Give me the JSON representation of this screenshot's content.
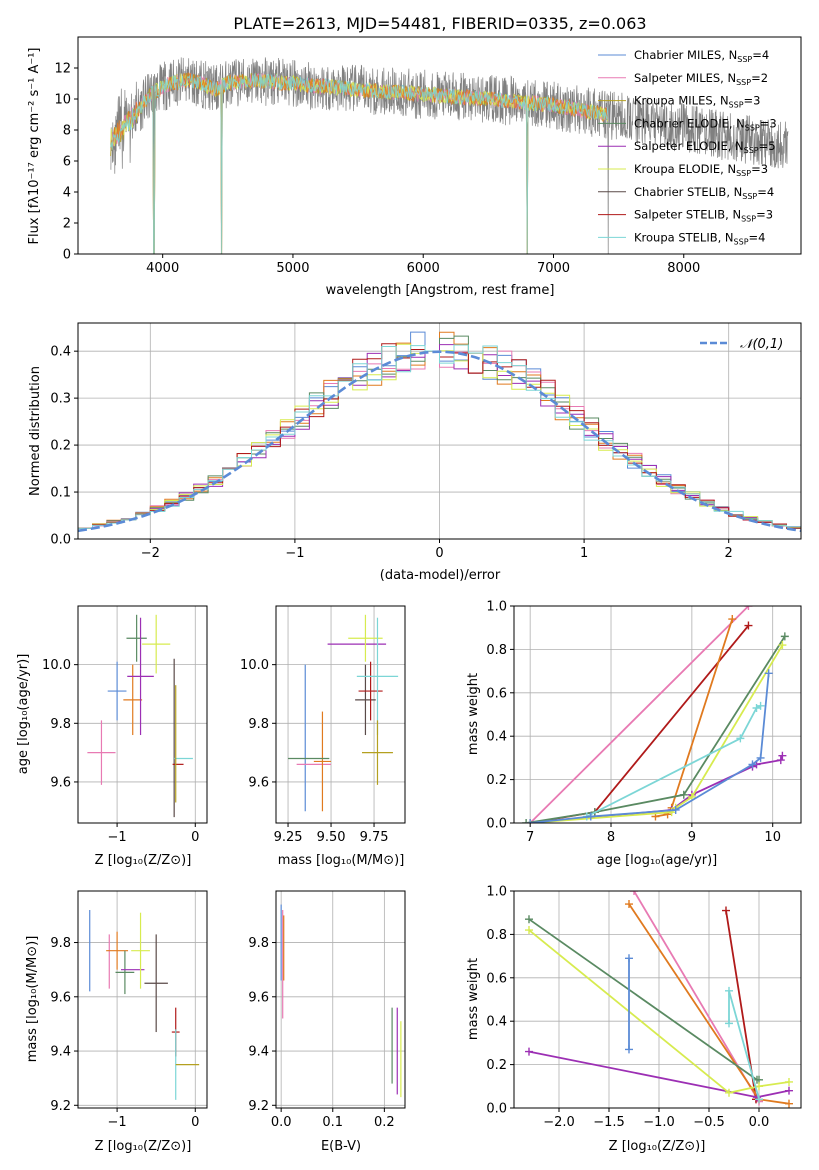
{
  "title": "PLATE=2613, MJD=54481, FIBERID=0335, z=0.063",
  "colors": {
    "chabrier_miles": "#5b8bd6",
    "salpeter_miles": "#e87ab3",
    "kroupa_miles": "#b4a020",
    "chabrier_elodie": "#5a8a62",
    "salpeter_elodie": "#9c2fb4",
    "kroupa_elodie": "#d7eb4f",
    "chabrier_stelib": "#5a4a48",
    "salpeter_stelib": "#b01a1a",
    "kroupa_stelib": "#7cd6d6",
    "orange_series": "#e07a1f",
    "data_gray": "#808080",
    "normal_curve": "#5b8bd6"
  },
  "chart_data": [
    {
      "id": "spectrum",
      "type": "line",
      "xlabel": "wavelength [Angstrom, rest frame]",
      "ylabel": "Flux [fλ10⁻¹⁷ erg cm⁻² s⁻¹ A⁻¹]",
      "xlim": [
        3350,
        8900
      ],
      "ylim": [
        0,
        14
      ],
      "xticks": [
        4000,
        5000,
        6000,
        7000,
        8000
      ],
      "yticks": [
        0,
        2,
        4,
        6,
        8,
        10,
        12
      ],
      "legend_position": "top-right",
      "legend": [
        "Chabrier MILES, N_SSP=4",
        "Salpeter MILES, N_SSP=2",
        "Kroupa MILES, N_SSP=3",
        "Chabrier ELODIE, N_SSP=3",
        "Salpeter ELODIE, N_SSP=5",
        "Kroupa ELODIE, N_SSP=3",
        "Chabrier STELIB, N_SSP=4",
        "Salpeter STELIB, N_SSP=3",
        "Kroupa STELIB, N_SSP=4"
      ],
      "continuum": {
        "x": [
          3600,
          3700,
          3800,
          3900,
          4000,
          4100,
          4200,
          4300,
          4400,
          4500,
          4700,
          5000,
          5500,
          6000,
          6500,
          7000,
          7400,
          7800,
          8200,
          8600,
          8800
        ],
        "y": [
          7.2,
          8.2,
          9.2,
          10.2,
          10.8,
          11.1,
          11.2,
          11.0,
          10.6,
          11.0,
          11.2,
          11.0,
          10.6,
          10.3,
          10.0,
          9.6,
          9.0,
          8.4,
          7.8,
          7.2,
          7.0
        ]
      },
      "gray_range": [
        3600,
        8800
      ],
      "model_range": [
        3600,
        7420
      ],
      "dips": [
        {
          "x": 3933,
          "y": 0.0
        },
        {
          "x": 4450,
          "y": 0.0
        },
        {
          "x": 6800,
          "y": 0.0
        },
        {
          "x": 7420,
          "y": 0.0
        }
      ]
    },
    {
      "id": "residuals",
      "type": "line",
      "xlabel": "(data-model)/error",
      "ylabel": "Normed distribution",
      "xlim": [
        -2.5,
        2.5
      ],
      "ylim": [
        0,
        0.46
      ],
      "xticks": [
        -2,
        -1,
        0,
        1,
        2
      ],
      "yticks": [
        0.0,
        0.1,
        0.2,
        0.3,
        0.4
      ],
      "grid": true,
      "legend_position": "top-right",
      "legend": [
        "𝒩(0,1)"
      ],
      "bin_width": 0.1,
      "curve": "normal(0,1)"
    },
    {
      "id": "age_vs_Z",
      "type": "scatter",
      "xlabel": "Z [log₁₀(Z/Z⊙)]",
      "ylabel": "age  [log₁₀(age/yr)]",
      "xlim": [
        -1.5,
        0.15
      ],
      "ylim": [
        9.46,
        10.2
      ],
      "xticks": [
        -1,
        0
      ],
      "yticks": [
        9.6,
        9.8,
        10.0
      ],
      "grid": true,
      "series": [
        {
          "x": -1.0,
          "y": 9.91,
          "xerr": 0.12,
          "yerr": 0.1
        },
        {
          "x": -1.2,
          "y": 9.7,
          "xerr": 0.18,
          "yerr": 0.11
        },
        {
          "x": -0.8,
          "y": 9.88,
          "xerr": 0.12,
          "yerr": 0.12
        },
        {
          "x": -0.75,
          "y": 10.09,
          "xerr": 0.13,
          "yerr": 0.08
        },
        {
          "x": -0.7,
          "y": 9.96,
          "xerr": 0.17,
          "yerr": 0.2
        },
        {
          "x": -0.5,
          "y": 10.07,
          "xerr": 0.18,
          "yerr": 0.1
        },
        {
          "x": -0.27,
          "y": 9.75,
          "xerr": 0.0,
          "yerr": 0.27
        },
        {
          "x": -0.22,
          "y": 9.66,
          "xerr": 0.07,
          "yerr": 0.0
        },
        {
          "x": -0.15,
          "y": 9.68,
          "xerr": 0.12,
          "yerr": 0.0
        },
        {
          "x": -0.25,
          "y": 9.73,
          "xerr": 0.0,
          "yerr": 0.2
        }
      ]
    },
    {
      "id": "age_vs_mass",
      "type": "scatter",
      "xlabel": "mass [log₁₀(M/M⊙)]",
      "ylabel": "",
      "xlim": [
        9.18,
        9.93
      ],
      "ylim": [
        9.46,
        10.2
      ],
      "xticks": [
        9.25,
        9.5,
        9.75
      ],
      "yticks": [
        9.6,
        9.8,
        10.0
      ],
      "grid": true,
      "series": [
        {
          "x": 9.35,
          "y": 9.75,
          "xerr": 0.0,
          "yerr": 0.25
        },
        {
          "x": 9.4,
          "y": 9.66,
          "xerr": 0.1,
          "yerr": 0.0
        },
        {
          "x": 9.45,
          "y": 9.67,
          "xerr": 0.05,
          "yerr": 0.17
        },
        {
          "x": 9.37,
          "y": 9.68,
          "xerr": 0.12,
          "yerr": 0.0
        },
        {
          "x": 9.65,
          "y": 10.07,
          "xerr": 0.17,
          "yerr": 0.0
        },
        {
          "x": 9.7,
          "y": 10.09,
          "xerr": 0.1,
          "yerr": 0.08
        },
        {
          "x": 9.7,
          "y": 9.88,
          "xerr": 0.06,
          "yerr": 0.12
        },
        {
          "x": 9.73,
          "y": 9.91,
          "xerr": 0.07,
          "yerr": 0.1
        },
        {
          "x": 9.77,
          "y": 9.96,
          "xerr": 0.12,
          "yerr": 0.2
        },
        {
          "x": 9.77,
          "y": 9.7,
          "xerr": 0.09,
          "yerr": 0.11
        }
      ]
    },
    {
      "id": "massweight_vs_age",
      "type": "line",
      "xlabel": "age  [log₁₀(age/yr)]",
      "ylabel": "mass weight",
      "xlim": [
        6.8,
        10.35
      ],
      "ylim": [
        0,
        1
      ],
      "xticks": [
        7,
        8,
        9,
        10
      ],
      "yticks": [
        0.0,
        0.2,
        0.4,
        0.6,
        0.8,
        1.0
      ],
      "grid": true,
      "series": [
        {
          "x": [
            7.0,
            9.7
          ],
          "y": [
            0.0,
            1.0
          ]
        },
        {
          "x": [
            7.0,
            7.8,
            9.7
          ],
          "y": [
            0.0,
            0.05,
            0.91
          ]
        },
        {
          "x": [
            8.55,
            8.7,
            8.75,
            9.5
          ],
          "y": [
            0.03,
            0.04,
            0.07,
            0.94
          ]
        },
        {
          "x": [
            6.95,
            7.8,
            8.9,
            10.15
          ],
          "y": [
            0.0,
            0.05,
            0.13,
            0.86
          ]
        },
        {
          "x": [
            7.0,
            8.75,
            9.0,
            9.75,
            9.8,
            10.1,
            10.12
          ],
          "y": [
            0.0,
            0.06,
            0.13,
            0.26,
            0.27,
            0.29,
            0.31
          ]
        },
        {
          "x": [
            7.0,
            8.75,
            8.8,
            9.0,
            10.12
          ],
          "y": [
            0.0,
            0.05,
            0.07,
            0.12,
            0.82
          ]
        },
        {
          "x": [
            7.7,
            9.6,
            9.8,
            9.85
          ],
          "y": [
            0.03,
            0.39,
            0.53,
            0.54
          ]
        },
        {
          "x": [
            7.0,
            7.75,
            8.8,
            9.75,
            9.85,
            9.95
          ],
          "y": [
            0.0,
            0.03,
            0.06,
            0.27,
            0.3,
            0.69
          ]
        }
      ]
    },
    {
      "id": "mass_vs_Z",
      "type": "scatter",
      "xlabel": "Z [log₁₀(Z/Z⊙)]",
      "ylabel": "mass [log₁₀(M/M⊙)]",
      "xlim": [
        -1.5,
        0.15
      ],
      "ylim": [
        9.19,
        9.99
      ],
      "xticks": [
        -1,
        0
      ],
      "yticks": [
        9.2,
        9.4,
        9.6,
        9.8
      ],
      "grid": true,
      "series": [
        {
          "x": -1.35,
          "y": 9.77,
          "xerr": 0.0,
          "yerr": 0.15
        },
        {
          "x": -1.1,
          "y": 9.73,
          "xerr": 0.0,
          "yerr": 0.1
        },
        {
          "x": -1.0,
          "y": 9.77,
          "xerr": 0.14,
          "yerr": 0.07
        },
        {
          "x": -0.9,
          "y": 9.69,
          "xerr": 0.12,
          "yerr": 0.08
        },
        {
          "x": -0.8,
          "y": 9.7,
          "xerr": 0.15,
          "yerr": 0.0
        },
        {
          "x": -0.7,
          "y": 9.77,
          "xerr": 0.12,
          "yerr": 0.14
        },
        {
          "x": -0.5,
          "y": 9.65,
          "xerr": 0.15,
          "yerr": 0.18
        },
        {
          "x": -0.25,
          "y": 9.47,
          "xerr": 0.05,
          "yerr": 0.09
        },
        {
          "x": -0.25,
          "y": 9.35,
          "xerr": 0.0,
          "yerr": 0.13
        },
        {
          "x": -0.1,
          "y": 9.35,
          "xerr": 0.15,
          "yerr": 0.0
        }
      ]
    },
    {
      "id": "mass_vs_ebv",
      "type": "scatter",
      "xlabel": "E(B-V)",
      "ylabel": "",
      "xlim": [
        -0.01,
        0.24
      ],
      "ylim": [
        9.19,
        9.99
      ],
      "xticks": [
        0.0,
        0.1,
        0.2
      ],
      "yticks": [
        9.2,
        9.4,
        9.6,
        9.8
      ],
      "grid": true,
      "series": [
        {
          "x": 0.0,
          "y": 9.8,
          "xerr": 0.0,
          "yerr": 0.14
        },
        {
          "x": 0.003,
          "y": 9.72,
          "xerr": 0.0,
          "yerr": 0.2
        },
        {
          "x": 0.005,
          "y": 9.78,
          "xerr": 0.0,
          "yerr": 0.12
        },
        {
          "x": 0.215,
          "y": 9.42,
          "xerr": 0.0,
          "yerr": 0.14
        },
        {
          "x": 0.225,
          "y": 9.4,
          "xerr": 0.0,
          "yerr": 0.16
        },
        {
          "x": 0.232,
          "y": 9.37,
          "xerr": 0.0,
          "yerr": 0.14
        }
      ]
    },
    {
      "id": "massweight_vs_Z",
      "type": "line",
      "xlabel": "Z [log₁₀(Z/Z⊙)]",
      "ylabel": "mass weight",
      "xlim": [
        -2.45,
        0.42
      ],
      "ylim": [
        0,
        1
      ],
      "xticks": [
        -2.0,
        -1.5,
        -1.0,
        -0.5,
        0.0
      ],
      "yticks": [
        0.0,
        0.2,
        0.4,
        0.6,
        0.8,
        1.0
      ],
      "grid": true,
      "series": [
        {
          "x": [
            -1.25,
            0.0
          ],
          "y": [
            1.0,
            0.03
          ]
        },
        {
          "x": [
            -0.33,
            -0.03
          ],
          "y": [
            0.91,
            0.04
          ]
        },
        {
          "x": [
            -1.3,
            0.0,
            0.3
          ],
          "y": [
            0.94,
            0.04,
            0.02
          ]
        },
        {
          "x": [
            -2.3,
            -0.02,
            0.0
          ],
          "y": [
            0.87,
            0.13,
            0.13
          ]
        },
        {
          "x": [
            -2.3,
            -0.02,
            0.3
          ],
          "y": [
            0.26,
            0.05,
            0.08
          ]
        },
        {
          "x": [
            -2.3,
            -0.3,
            0.0,
            0.3
          ],
          "y": [
            0.82,
            0.07,
            0.1,
            0.12
          ]
        },
        {
          "x": [
            -0.3,
            -0.3,
            0.0
          ],
          "y": [
            0.39,
            0.54,
            0.04
          ]
        },
        {
          "x": [
            -1.3,
            -1.3
          ],
          "y": [
            0.27,
            0.69
          ]
        }
      ]
    }
  ]
}
